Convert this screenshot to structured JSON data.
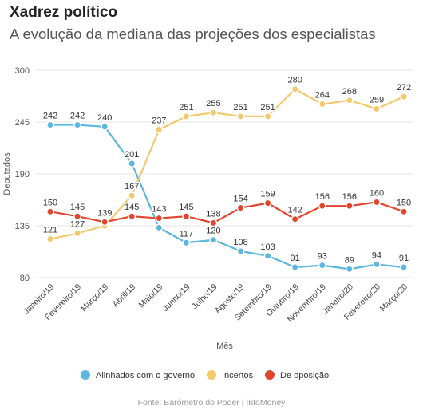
{
  "header": {
    "title": "Xadrez político",
    "subtitle": "A evolução da mediana das projeções dos especialistas"
  },
  "source": "Fonte: Barômetro do Poder | InfoMoney",
  "chart_data": {
    "type": "line",
    "title": "Xadrez político",
    "subtitle": "A evolução da mediana das projeções dos especialistas",
    "xlabel": "Mês",
    "ylabel": "Deputados",
    "ylim": [
      80,
      300
    ],
    "yticks": [
      80,
      135,
      190,
      245,
      300
    ],
    "grid": true,
    "legend_position": "bottom",
    "categories": [
      "Janeiro/19",
      "Fevereiro/19",
      "Março/19",
      "Abril/19",
      "Maio/19",
      "Junho/19",
      "Julho/19",
      "Agosto/19",
      "Setembro/19",
      "Outubro/19",
      "Novembro/19",
      "Janeiro/20",
      "Fevereiro/20",
      "Março/20"
    ],
    "series": [
      {
        "name": "Alinhados com o governo",
        "color": "#5bb6e0",
        "values": [
          242,
          242,
          240,
          201,
          133,
          117,
          120,
          108,
          103,
          91,
          93,
          89,
          94,
          91
        ],
        "labels": [
          "242",
          "242",
          "240",
          "201",
          "",
          "117",
          "120",
          "108",
          "103",
          "91",
          "93",
          "89",
          "94",
          "91"
        ]
      },
      {
        "name": "Incertos",
        "color": "#f2c96b",
        "values": [
          121,
          127,
          135,
          167,
          237,
          251,
          255,
          251,
          251,
          280,
          264,
          268,
          259,
          272
        ],
        "labels": [
          "121",
          "127",
          "",
          "167",
          "237",
          "251",
          "255",
          "251",
          "251",
          "280",
          "264",
          "268",
          "259",
          "272"
        ]
      },
      {
        "name": "De oposição",
        "color": "#e1452d",
        "values": [
          150,
          145,
          139,
          145,
          143,
          145,
          138,
          154,
          159,
          142,
          156,
          156,
          160,
          150
        ],
        "labels": [
          "150",
          "145",
          "139",
          "145",
          "143",
          "145",
          "138",
          "154",
          "159",
          "142",
          "156",
          "156",
          "160",
          "150"
        ]
      }
    ]
  }
}
